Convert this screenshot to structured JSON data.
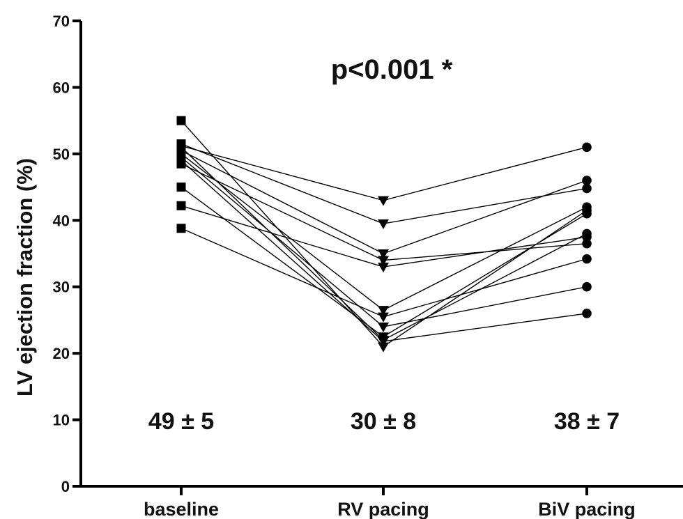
{
  "chart_data": {
    "type": "line",
    "title": "",
    "xlabel": "",
    "ylabel": "LV ejection fraction (%)",
    "ylim": [
      0,
      70
    ],
    "yticks": [
      0,
      10,
      20,
      30,
      40,
      50,
      60,
      70
    ],
    "grid": false,
    "categories": [
      "baseline",
      "RV pacing",
      "BiV pacing"
    ],
    "markers": [
      "square",
      "triangle-down",
      "circle"
    ],
    "series": [
      {
        "values": [
          55.0,
          21.0,
          41.5
        ]
      },
      {
        "values": [
          51.5,
          39.5,
          44.8
        ]
      },
      {
        "values": [
          51.0,
          22.0,
          38.0
        ]
      },
      {
        "values": [
          50.5,
          35.0,
          46.0
        ]
      },
      {
        "values": [
          50.0,
          26.5,
          42.0
        ]
      },
      {
        "values": [
          49.5,
          24.0,
          30.0
        ]
      },
      {
        "values": [
          49.0,
          21.8,
          26.0
        ]
      },
      {
        "values": [
          48.5,
          34.0,
          36.5
        ]
      },
      {
        "values": [
          45.0,
          22.5,
          41.0
        ]
      },
      {
        "values": [
          42.2,
          33.0,
          37.5
        ]
      },
      {
        "values": [
          38.8,
          25.5,
          34.2
        ]
      },
      {
        "values": [
          51.2,
          43.0,
          51.0
        ]
      }
    ],
    "group_stats": [
      "49 ± 5",
      "30 ± 8",
      "38 ± 7"
    ],
    "annotation": "p<0.001 *"
  }
}
